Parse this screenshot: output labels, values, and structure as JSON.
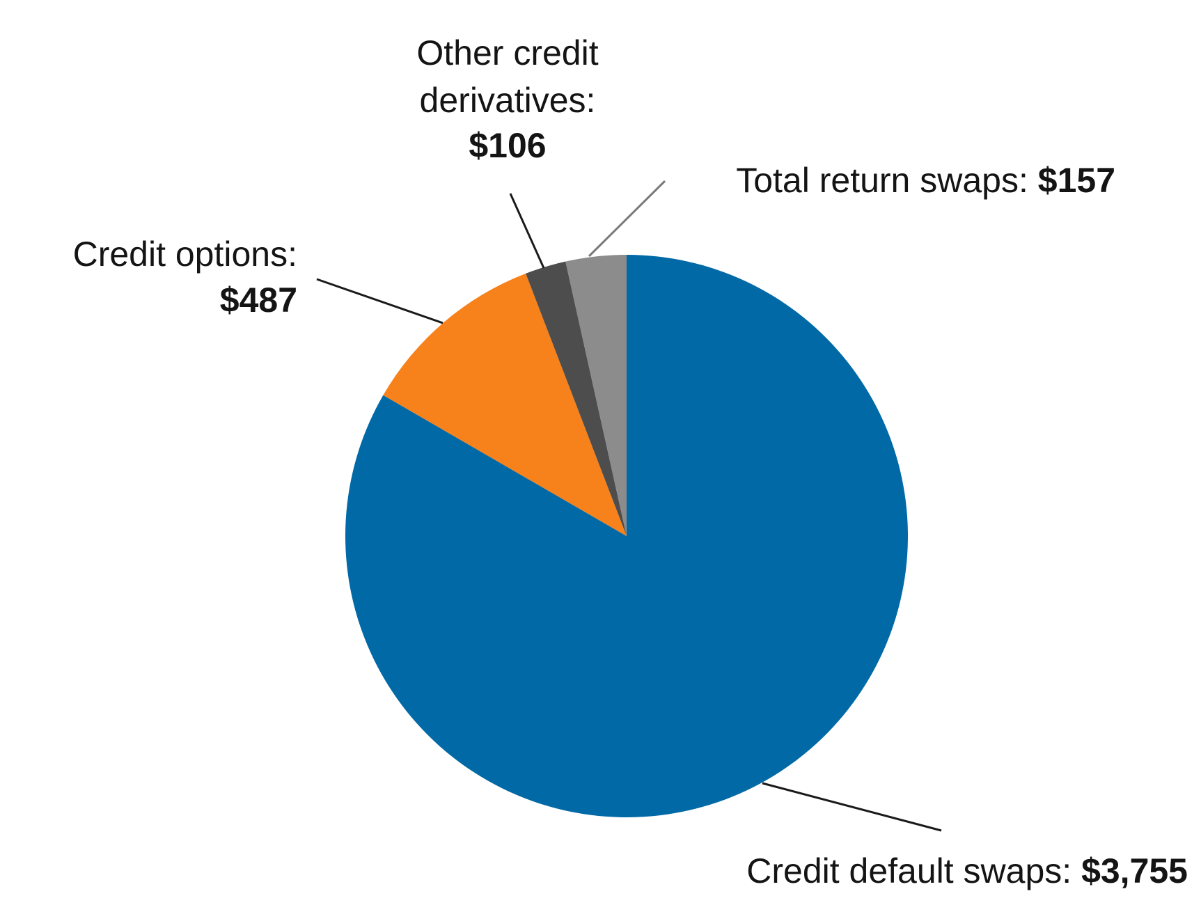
{
  "chart_data": {
    "type": "pie",
    "title": "",
    "start_angle_deg": 0,
    "direction": "clockwise",
    "legend": "none",
    "slices": [
      {
        "name": "Credit default swaps",
        "value": 3755,
        "value_label": "$3,755",
        "label_lines": [
          "Credit default swaps: "
        ],
        "color": "#0069a6",
        "leader_color": "#1a1a1a"
      },
      {
        "name": "Credit options",
        "value": 487,
        "value_label": "$487",
        "label_lines": [
          "Credit options:"
        ],
        "color": "#f7821b",
        "leader_color": "#1a1a1a"
      },
      {
        "name": "Other credit derivatives",
        "value": 106,
        "value_label": "$106",
        "label_lines": [
          "Other credit",
          "derivatives:"
        ],
        "color": "#4d4d4d",
        "leader_color": "#1a1a1a"
      },
      {
        "name": "Total return swaps",
        "value": 157,
        "value_label": "$157",
        "label_lines": [
          "Total return swaps: "
        ],
        "color": "#8c8c8c",
        "leader_color": "#7a7a7a"
      }
    ]
  }
}
